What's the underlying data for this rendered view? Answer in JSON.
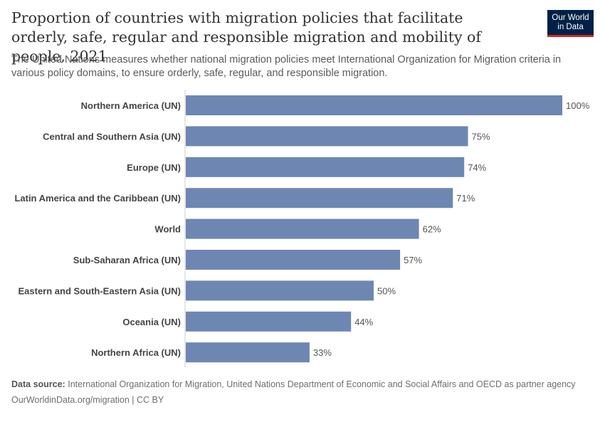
{
  "header": {
    "title": "Proportion of countries with migration policies that facilitate orderly, safe, regular and responsible migration and mobility of people, 2021",
    "subtitle": "The United Nations measures whether national migration policies meet International Organization for Migration criteria in various policy domains, to ensure orderly, safe, regular, and responsible migration.",
    "logo_line1": "Our World",
    "logo_line2": "in Data"
  },
  "footer": {
    "source_label": "Data source:",
    "source_text": "International Organization for Migration, United Nations Department of Economic and Social Affairs and OECD as partner agency",
    "url_text": "OurWorldinData.org/migration | CC BY"
  },
  "colors": {
    "bar": "#6d87b2",
    "axis": "#cccccc",
    "label": "#444444",
    "value_label": "#555555"
  },
  "chart_data": {
    "type": "bar",
    "orientation": "horizontal",
    "unit": "%",
    "xlim": [
      0,
      100
    ],
    "categories": [
      "Northern America (UN)",
      "Central and Southern Asia (UN)",
      "Europe (UN)",
      "Latin America and the Caribbean (UN)",
      "World",
      "Sub-Saharan Africa (UN)",
      "Eastern and South-Eastern Asia (UN)",
      "Oceania (UN)",
      "Northern Africa (UN)"
    ],
    "values": [
      100,
      75,
      74,
      71,
      62,
      57,
      50,
      44,
      33
    ],
    "value_labels": [
      "100%",
      "75%",
      "74%",
      "71%",
      "62%",
      "57%",
      "50%",
      "44%",
      "33%"
    ]
  }
}
